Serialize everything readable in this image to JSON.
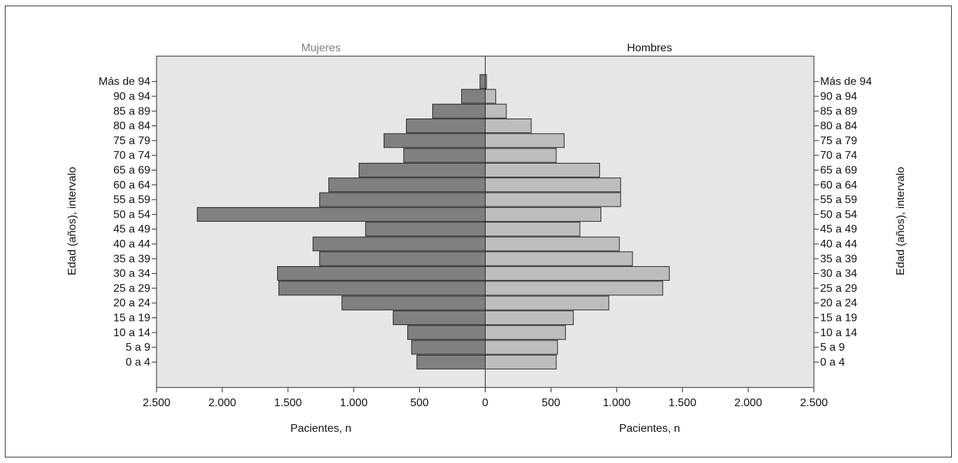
{
  "chart_data": {
    "type": "bar",
    "orientation": "horizontal",
    "layout": "population-pyramid",
    "categories": [
      "0 a 4",
      "5 a 9",
      "10 a 14",
      "15 a 19",
      "20 a 24",
      "25 a 29",
      "30 a 34",
      "35 a 39",
      "40 a 44",
      "45 a 49",
      "50 a 54",
      "55 a 59",
      "60 a 64",
      "65 a 69",
      "70 a 74",
      "75 a 79",
      "80 a 84",
      "85 a 89",
      "90 a 94",
      "Más de 94"
    ],
    "series": [
      {
        "name": "Mujeres",
        "side": "left",
        "color": "#808080",
        "label_color": "#808080",
        "values": [
          520,
          560,
          590,
          700,
          1090,
          1570,
          1580,
          1260,
          1310,
          910,
          2190,
          1260,
          1190,
          960,
          620,
          770,
          600,
          400,
          180,
          40
        ]
      },
      {
        "name": "Hombres",
        "side": "right",
        "color": "#bdbdbd",
        "label_color": "#111111",
        "values": [
          540,
          550,
          610,
          670,
          940,
          1350,
          1400,
          1120,
          1020,
          720,
          880,
          1030,
          1030,
          870,
          540,
          600,
          350,
          160,
          80,
          10
        ]
      }
    ],
    "xlim": [
      -2500,
      2500
    ],
    "x_ticks": [
      -2500,
      -2000,
      -1500,
      -1000,
      -500,
      0,
      500,
      1000,
      1500,
      2000,
      2500
    ],
    "x_tick_labels": [
      "2.500",
      "2.000",
      "1.500",
      "1.000",
      "500",
      "0",
      "500",
      "1.000",
      "1.500",
      "2.000",
      "2.500"
    ],
    "xlabel_left": "Pacientes, n",
    "xlabel_right": "Pacientes, n",
    "ylabel_left": "Edad (años), intervalo",
    "ylabel_right": "Edad (años), intervalo",
    "plot_background": "#e6e6e6",
    "grid": false
  }
}
